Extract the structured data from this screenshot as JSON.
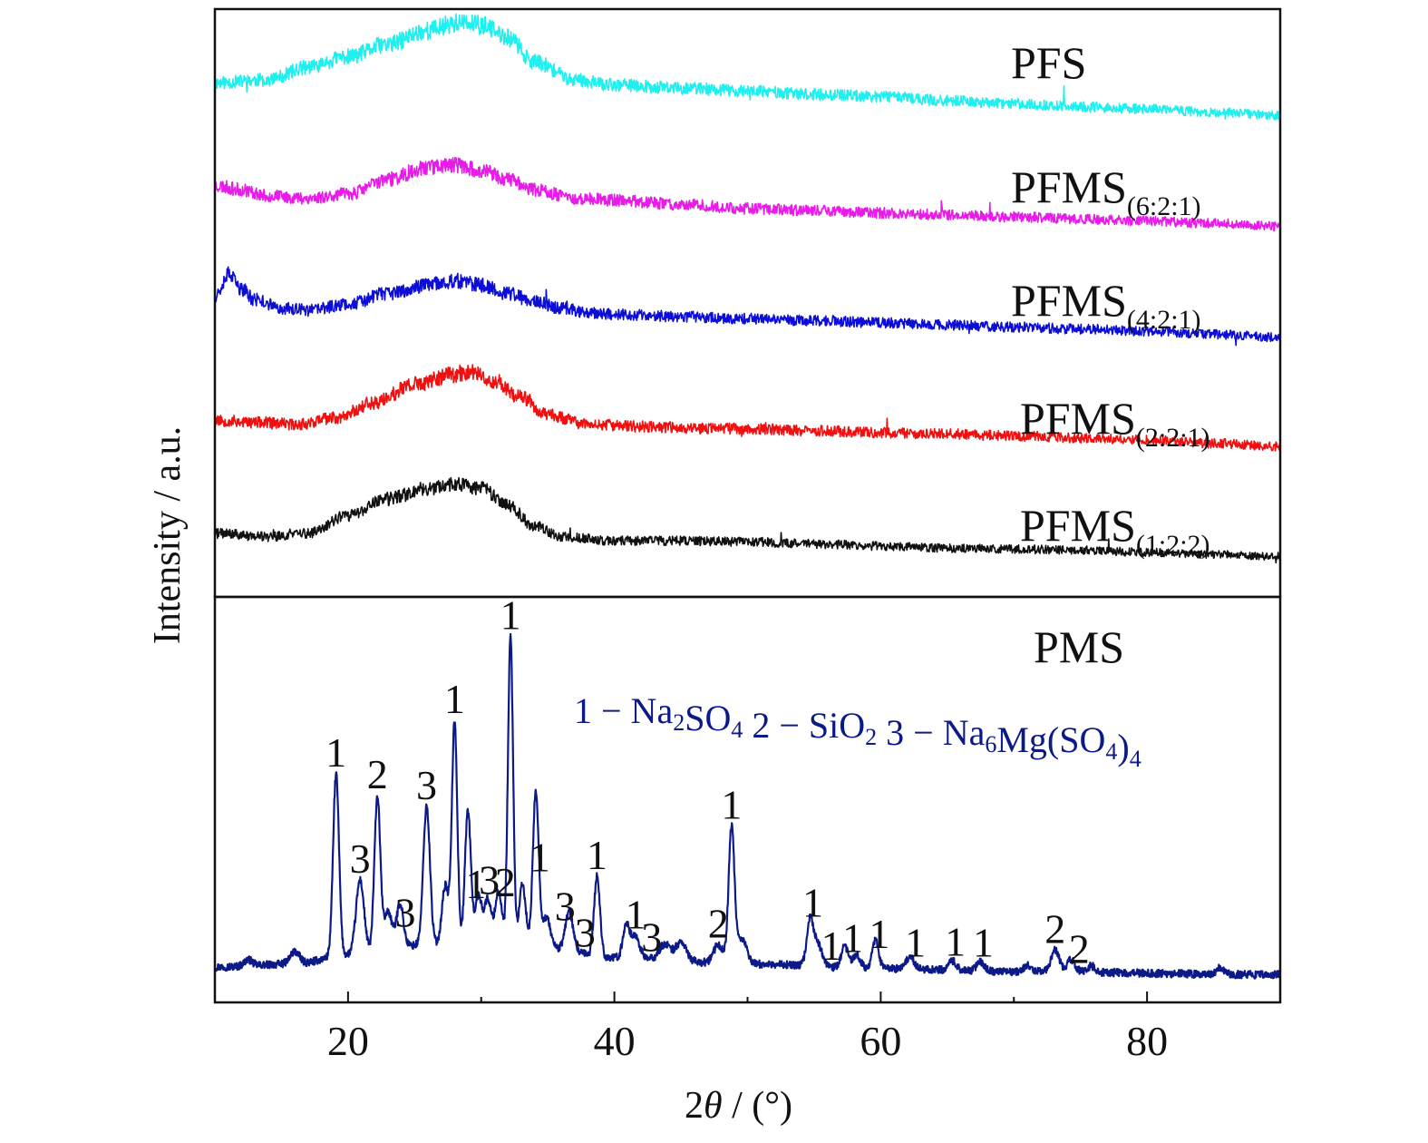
{
  "chart_data": {
    "type": "line",
    "ylabel": "Intensity / a.u.",
    "xlabel_prefix": "2",
    "xlabel_symbol": "θ",
    "xlabel_suffix": " / (°)",
    "xlim": [
      10,
      90
    ],
    "xticks": [
      20,
      40,
      60,
      80
    ],
    "grid": false,
    "panels": [
      {
        "id": "upper",
        "series": [
          {
            "name": "PFS",
            "color": "#1EF0F0",
            "offset": 4.2,
            "noise": 0.07,
            "seed": 11,
            "label_main": "PFS",
            "label_sub": "",
            "x": [
              10,
              14,
              17,
              20,
              23,
              26,
              28,
              30,
              32,
              34,
              37,
              40,
              45,
              50,
              55,
              60,
              65,
              70,
              75,
              80,
              85,
              90
            ],
            "y": [
              0.35,
              0.38,
              0.5,
              0.6,
              0.72,
              0.85,
              0.92,
              0.9,
              0.78,
              0.55,
              0.38,
              0.33,
              0.3,
              0.27,
              0.24,
              0.22,
              0.18,
              0.15,
              0.12,
              0.1,
              0.07,
              0.04
            ]
          },
          {
            "name": "PFMS(6:2:1)",
            "color": "#E81CE8",
            "offset": 3.15,
            "noise": 0.07,
            "seed": 23,
            "label_main": "PFMS",
            "label_sub": "(6:2:1)",
            "x": [
              10,
              12,
              14,
              17,
              20,
              23,
              26,
              28,
              30,
              32,
              34,
              37,
              40,
              45,
              50,
              55,
              60,
              65,
              70,
              75,
              80,
              85,
              90
            ],
            "y": [
              0.42,
              0.38,
              0.32,
              0.3,
              0.34,
              0.48,
              0.6,
              0.62,
              0.56,
              0.48,
              0.38,
              0.3,
              0.28,
              0.24,
              0.2,
              0.18,
              0.16,
              0.14,
              0.12,
              0.1,
              0.08,
              0.06,
              0.03
            ]
          },
          {
            "name": "PFMS(4:2:1)",
            "color": "#0D0DD8",
            "offset": 2.1,
            "noise": 0.07,
            "seed": 37,
            "label_main": "PFMS",
            "label_sub": "(4:2:1)",
            "x": [
              10,
              11,
              12,
              13,
              15,
              17,
              20,
              23,
              26,
              28,
              30,
              32,
              34,
              36,
              38,
              40,
              45,
              50,
              55,
              60,
              65,
              70,
              75,
              80,
              85,
              90
            ],
            "y": [
              0.42,
              0.62,
              0.48,
              0.38,
              0.3,
              0.28,
              0.34,
              0.44,
              0.52,
              0.56,
              0.52,
              0.44,
              0.36,
              0.3,
              0.26,
              0.24,
              0.22,
              0.2,
              0.18,
              0.16,
              0.14,
              0.12,
              0.1,
              0.08,
              0.05,
              0.02
            ]
          },
          {
            "name": "PFMS(2:2:1)",
            "color": "#F01010",
            "offset": 1.05,
            "noise": 0.07,
            "seed": 53,
            "label_main": "PFMS",
            "label_sub": "(2:2:1)",
            "x": [
              10,
              13,
              16,
              19,
              22,
              25,
              28,
              29.5,
              31,
              33,
              35,
              38,
              42,
              47,
              50,
              55,
              60,
              65,
              70,
              75,
              80,
              85,
              90
            ],
            "y": [
              0.28,
              0.26,
              0.24,
              0.3,
              0.45,
              0.62,
              0.72,
              0.74,
              0.65,
              0.5,
              0.33,
              0.24,
              0.22,
              0.2,
              0.2,
              0.18,
              0.16,
              0.15,
              0.13,
              0.11,
              0.09,
              0.06,
              0.03
            ]
          },
          {
            "name": "PFMS(1:2:2)",
            "color": "#111111",
            "offset": 0.0,
            "noise": 0.06,
            "seed": 71,
            "label_main": "PFMS",
            "label_sub": "(1:2:2)",
            "x": [
              10,
              14,
              17,
              20,
              23,
              26,
              28,
              30,
              32,
              34,
              36,
              40,
              45,
              50,
              55,
              60,
              65,
              70,
              75,
              80,
              85,
              90
            ],
            "y": [
              0.25,
              0.22,
              0.25,
              0.42,
              0.58,
              0.68,
              0.72,
              0.68,
              0.52,
              0.32,
              0.22,
              0.18,
              0.18,
              0.17,
              0.15,
              0.13,
              0.11,
              0.1,
              0.09,
              0.07,
              0.05,
              0.03
            ]
          }
        ]
      },
      {
        "id": "lower",
        "label": "PMS",
        "color": "#0C1A88",
        "ylim": [
          0,
          1.05
        ],
        "baseline": [
          [
            10,
            0.05
          ],
          [
            16,
            0.06
          ],
          [
            20,
            0.09
          ],
          [
            25,
            0.12
          ],
          [
            30,
            0.13
          ],
          [
            35,
            0.11
          ],
          [
            40,
            0.08
          ],
          [
            50,
            0.06
          ],
          [
            60,
            0.045
          ],
          [
            70,
            0.035
          ],
          [
            90,
            0.025
          ]
        ],
        "peaks": [
          {
            "x": 12.5,
            "h": 0.02,
            "w": 0.3
          },
          {
            "x": 16.0,
            "h": 0.04,
            "w": 0.35
          },
          {
            "x": 19.1,
            "h": 0.59,
            "w": 0.22
          },
          {
            "x": 20.9,
            "h": 0.24,
            "w": 0.3
          },
          {
            "x": 22.2,
            "h": 0.5,
            "w": 0.22
          },
          {
            "x": 23.0,
            "h": 0.12,
            "w": 0.3
          },
          {
            "x": 23.9,
            "h": 0.14,
            "w": 0.25
          },
          {
            "x": 25.9,
            "h": 0.45,
            "w": 0.25
          },
          {
            "x": 27.3,
            "h": 0.19,
            "w": 0.25
          },
          {
            "x": 28.0,
            "h": 0.72,
            "w": 0.2
          },
          {
            "x": 29.0,
            "h": 0.43,
            "w": 0.22
          },
          {
            "x": 29.8,
            "h": 0.15,
            "w": 0.25
          },
          {
            "x": 30.5,
            "h": 0.14,
            "w": 0.25
          },
          {
            "x": 31.3,
            "h": 0.17,
            "w": 0.25
          },
          {
            "x": 32.2,
            "h": 1.0,
            "w": 0.19
          },
          {
            "x": 33.1,
            "h": 0.2,
            "w": 0.25
          },
          {
            "x": 34.1,
            "h": 0.51,
            "w": 0.22
          },
          {
            "x": 34.9,
            "h": 0.1,
            "w": 0.3
          },
          {
            "x": 36.6,
            "h": 0.13,
            "w": 0.28
          },
          {
            "x": 38.7,
            "h": 0.26,
            "w": 0.22
          },
          {
            "x": 40.9,
            "h": 0.11,
            "w": 0.25
          },
          {
            "x": 41.6,
            "h": 0.07,
            "w": 0.3
          },
          {
            "x": 43.8,
            "h": 0.05,
            "w": 0.4
          },
          {
            "x": 45.0,
            "h": 0.06,
            "w": 0.4
          },
          {
            "x": 47.8,
            "h": 0.06,
            "w": 0.35
          },
          {
            "x": 48.8,
            "h": 0.44,
            "w": 0.22
          },
          {
            "x": 49.6,
            "h": 0.08,
            "w": 0.35
          },
          {
            "x": 54.7,
            "h": 0.15,
            "w": 0.25
          },
          {
            "x": 55.3,
            "h": 0.07,
            "w": 0.3
          },
          {
            "x": 57.3,
            "h": 0.07,
            "w": 0.25
          },
          {
            "x": 58.2,
            "h": 0.04,
            "w": 0.3
          },
          {
            "x": 59.6,
            "h": 0.09,
            "w": 0.25
          },
          {
            "x": 62.2,
            "h": 0.04,
            "w": 0.3
          },
          {
            "x": 65.4,
            "h": 0.03,
            "w": 0.3
          },
          {
            "x": 67.5,
            "h": 0.03,
            "w": 0.3
          },
          {
            "x": 71.0,
            "h": 0.02,
            "w": 0.3
          },
          {
            "x": 73.1,
            "h": 0.07,
            "w": 0.3
          },
          {
            "x": 74.3,
            "h": 0.04,
            "w": 0.3
          },
          {
            "x": 75.8,
            "h": 0.02,
            "w": 0.3
          },
          {
            "x": 85.5,
            "h": 0.02,
            "w": 0.3
          }
        ],
        "peak_labels": [
          {
            "x": 19.1,
            "text": "1"
          },
          {
            "x": 20.9,
            "text": "3"
          },
          {
            "x": 22.2,
            "text": "2"
          },
          {
            "x": 24.3,
            "text": "3"
          },
          {
            "x": 25.9,
            "text": "3"
          },
          {
            "x": 28.0,
            "text": "1"
          },
          {
            "x": 29.6,
            "text": "1"
          },
          {
            "x": 30.6,
            "text": "3"
          },
          {
            "x": 31.8,
            "text": "2"
          },
          {
            "x": 32.2,
            "text": "1"
          },
          {
            "x": 34.4,
            "text": "1"
          },
          {
            "x": 36.3,
            "text": "3"
          },
          {
            "x": 37.8,
            "text": "3"
          },
          {
            "x": 38.7,
            "text": "1"
          },
          {
            "x": 41.6,
            "text": "1"
          },
          {
            "x": 42.8,
            "text": "3"
          },
          {
            "x": 47.8,
            "text": "2"
          },
          {
            "x": 48.8,
            "text": "1"
          },
          {
            "x": 54.9,
            "text": "1"
          },
          {
            "x": 56.3,
            "text": "1"
          },
          {
            "x": 57.9,
            "text": "1"
          },
          {
            "x": 59.9,
            "text": "1"
          },
          {
            "x": 62.6,
            "text": "1"
          },
          {
            "x": 65.6,
            "text": "1"
          },
          {
            "x": 67.7,
            "text": "1"
          },
          {
            "x": 73.1,
            "text": "2"
          },
          {
            "x": 74.9,
            "text": "2"
          }
        ],
        "legend": [
          {
            "lead": "1 − Na",
            "sub1": "2",
            "mid": "SO",
            "sub2": "4",
            "tail": ""
          },
          {
            "lead": " 2 − SiO",
            "sub1": "2",
            "mid": "",
            "sub2": "",
            "tail": ""
          },
          {
            "lead": " 3 − Na",
            "sub1": "6",
            "mid": "Mg(SO",
            "sub2": "4",
            "tail": ")"
          },
          {
            "lead": "",
            "sub1": "",
            "mid": "",
            "sub2": "4",
            "tail": ""
          }
        ]
      }
    ]
  }
}
